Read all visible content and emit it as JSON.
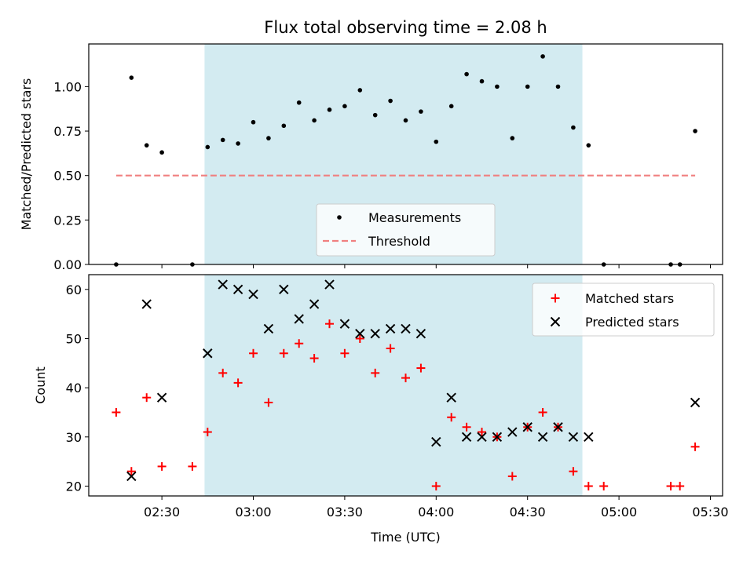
{
  "chart_data": [
    {
      "type": "scatter",
      "title": "Flux total observing time = 2.08 h",
      "xlabel": "",
      "ylabel": "Matched/Predicted stars",
      "x_range": [
        "02:06",
        "05:34"
      ],
      "ylim": [
        0,
        1.24
      ],
      "yticks": [
        "0.00",
        "0.25",
        "0.50",
        "0.75",
        "1.00"
      ],
      "shaded_span": [
        "02:44",
        "04:48"
      ],
      "shade_color": "#d3ebf1",
      "legend_location": "lower center",
      "series": [
        {
          "name": "Measurements",
          "marker": "dot",
          "color": "#000000",
          "x": [
            "02:15",
            "02:20",
            "02:25",
            "02:30",
            "02:40",
            "02:45",
            "02:50",
            "02:55",
            "03:00",
            "03:05",
            "03:10",
            "03:15",
            "03:20",
            "03:25",
            "03:30",
            "03:35",
            "03:40",
            "03:45",
            "03:50",
            "03:55",
            "04:00",
            "04:05",
            "04:10",
            "04:15",
            "04:20",
            "04:25",
            "04:30",
            "04:35",
            "04:40",
            "04:45",
            "04:50",
            "04:55",
            "05:17",
            "05:20",
            "05:25"
          ],
          "y": [
            0.0,
            1.05,
            0.67,
            0.63,
            0.0,
            0.66,
            0.7,
            0.68,
            0.8,
            0.71,
            0.78,
            0.91,
            0.81,
            0.87,
            0.89,
            0.98,
            0.84,
            0.92,
            0.81,
            0.86,
            0.69,
            0.89,
            1.07,
            1.03,
            1.0,
            0.71,
            1.0,
            1.17,
            1.0,
            0.77,
            0.67,
            0.0,
            0.0,
            0.0,
            0.75
          ]
        },
        {
          "name": "Threshold",
          "marker": "dashed-line",
          "color": "#f08080",
          "x": [
            "02:15",
            "05:25"
          ],
          "y": [
            0.5,
            0.5
          ]
        }
      ]
    },
    {
      "type": "scatter",
      "title": "",
      "xlabel": "Time (UTC)",
      "ylabel": "Count",
      "x_range": [
        "02:06",
        "05:34"
      ],
      "xticks": [
        "02:30",
        "03:00",
        "03:30",
        "04:00",
        "04:30",
        "05:00",
        "05:30"
      ],
      "ylim": [
        18,
        63
      ],
      "yticks": [
        "20",
        "30",
        "40",
        "50",
        "60"
      ],
      "shaded_span": [
        "02:44",
        "04:48"
      ],
      "shade_color": "#d3ebf1",
      "legend_location": "upper right",
      "series": [
        {
          "name": "Matched stars",
          "marker": "plus",
          "color": "#ff0000",
          "x": [
            "02:15",
            "02:20",
            "02:25",
            "02:30",
            "02:40",
            "02:45",
            "02:50",
            "02:55",
            "03:00",
            "03:05",
            "03:10",
            "03:15",
            "03:20",
            "03:25",
            "03:30",
            "03:35",
            "03:40",
            "03:45",
            "03:50",
            "03:55",
            "04:00",
            "04:05",
            "04:10",
            "04:15",
            "04:20",
            "04:25",
            "04:30",
            "04:35",
            "04:40",
            "04:45",
            "04:50",
            "04:55",
            "05:17",
            "05:20",
            "05:25"
          ],
          "y": [
            35,
            23,
            38,
            24,
            24,
            31,
            43,
            41,
            47,
            37,
            47,
            49,
            46,
            53,
            47,
            50,
            43,
            48,
            42,
            44,
            20,
            34,
            32,
            31,
            30,
            22,
            32,
            35,
            32,
            23,
            20,
            20,
            20,
            20,
            28
          ]
        },
        {
          "name": "Predicted stars",
          "marker": "x",
          "color": "#000000",
          "x": [
            "02:20",
            "02:25",
            "02:30",
            "02:45",
            "02:50",
            "02:55",
            "03:00",
            "03:05",
            "03:10",
            "03:15",
            "03:20",
            "03:25",
            "03:30",
            "03:35",
            "03:40",
            "03:45",
            "03:50",
            "03:55",
            "04:00",
            "04:05",
            "04:10",
            "04:15",
            "04:20",
            "04:25",
            "04:30",
            "04:35",
            "04:40",
            "04:45",
            "04:50",
            "05:25"
          ],
          "y": [
            22,
            57,
            38,
            47,
            61,
            60,
            59,
            52,
            60,
            54,
            57,
            61,
            53,
            51,
            51,
            52,
            52,
            51,
            29,
            38,
            30,
            30,
            30,
            31,
            32,
            30,
            32,
            30,
            30,
            37
          ]
        }
      ]
    }
  ]
}
